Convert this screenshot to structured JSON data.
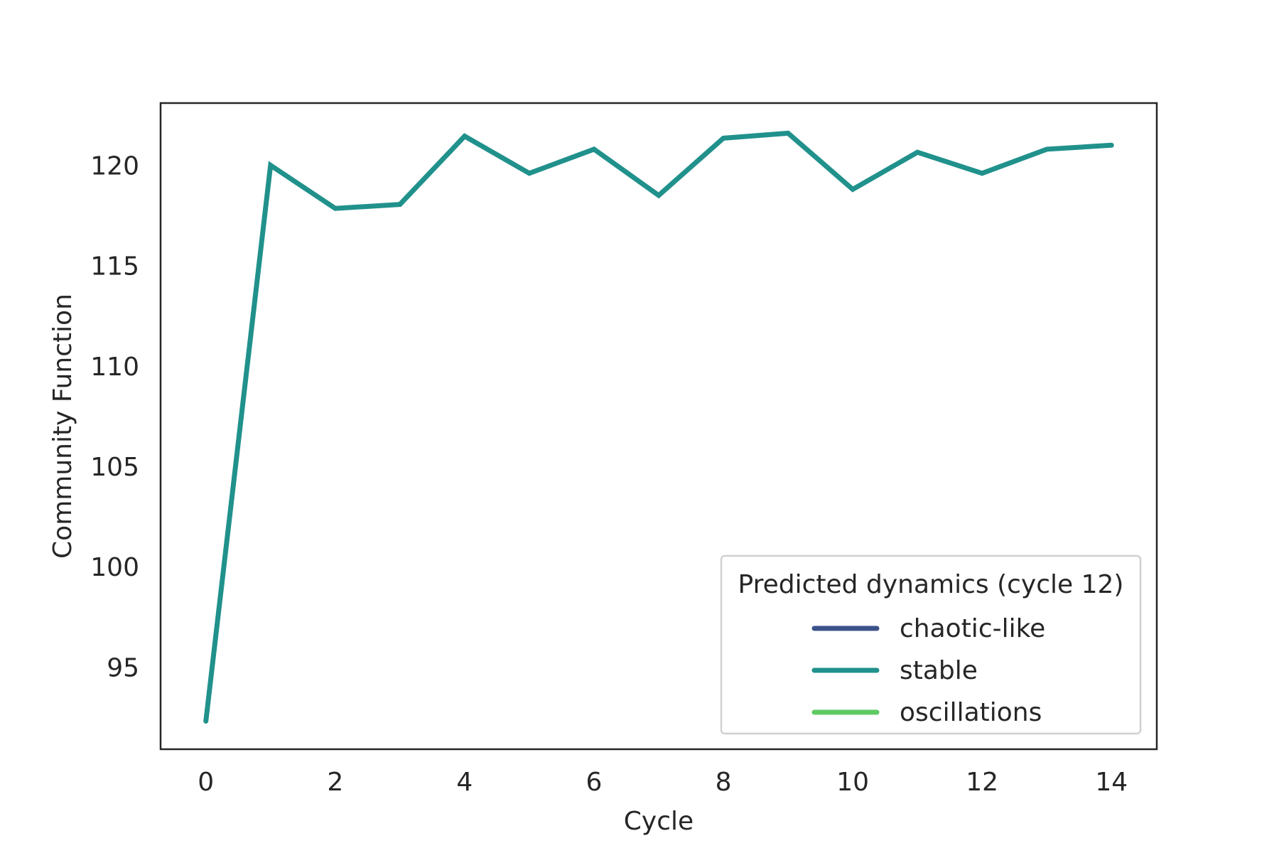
{
  "chart_data": {
    "type": "line",
    "title": "",
    "xlabel": "Cycle",
    "ylabel": "Community Function",
    "x": [
      0,
      1,
      2,
      3,
      4,
      5,
      6,
      7,
      8,
      9,
      10,
      11,
      12,
      13,
      14
    ],
    "series": [
      {
        "name": "stable",
        "color": "#21918c",
        "values": [
          92.3,
          120.0,
          117.85,
          118.05,
          121.45,
          119.6,
          120.8,
          118.5,
          121.35,
          121.6,
          118.8,
          120.65,
          119.6,
          120.8,
          121.0
        ]
      }
    ],
    "xlim": [
      -0.7,
      14.7
    ],
    "ylim": [
      90.9,
      123.1
    ],
    "xticks": [
      0,
      2,
      4,
      6,
      8,
      10,
      12,
      14
    ],
    "yticks": [
      95,
      100,
      105,
      110,
      115,
      120
    ],
    "grid": false,
    "legend": {
      "title": "Predicted dynamics (cycle 12)",
      "placement": "lower-right",
      "entries": [
        {
          "label": "chaotic-like",
          "color": "#3b528b"
        },
        {
          "label": "stable",
          "color": "#21918c"
        },
        {
          "label": "oscillations",
          "color": "#5ec962"
        }
      ]
    }
  }
}
